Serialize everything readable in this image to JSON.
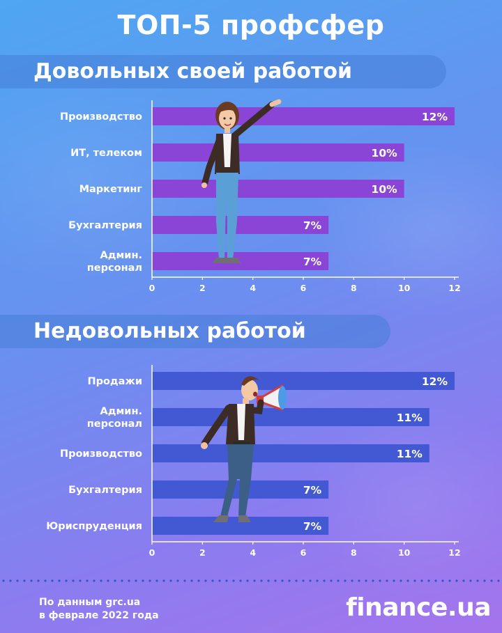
{
  "header": {
    "title": "ТОП-5 профсфер"
  },
  "colors": {
    "bar_satisfied": "#8a44d6",
    "bar_dissatisfied": "#4359d4",
    "axis": "#ffffff"
  },
  "chart_data": [
    {
      "type": "bar",
      "orientation": "horizontal",
      "title": "Довольных своей работой",
      "categories": [
        "Производство",
        "ИТ, телеком",
        "Маркетинг",
        "Бухгалтерия",
        "Админ. персонал"
      ],
      "category_lines": [
        [
          "Производство"
        ],
        [
          "ИТ, телеком"
        ],
        [
          "Маркетинг"
        ],
        [
          "Бухгалтерия"
        ],
        [
          "Админ.",
          "персонал"
        ]
      ],
      "values": [
        12,
        10,
        10,
        7,
        7
      ],
      "value_labels": [
        "12%",
        "10%",
        "10%",
        "7%",
        "7%"
      ],
      "xlim": [
        0,
        12
      ],
      "ticks": [
        0,
        2,
        4,
        6,
        8,
        10,
        12
      ],
      "tick_labels": [
        "0",
        "2",
        "4",
        "6",
        "8",
        "10",
        "12"
      ],
      "grid": false,
      "color": "#8a44d6"
    },
    {
      "type": "bar",
      "orientation": "horizontal",
      "title": "Недовольных работой",
      "categories": [
        "Продажи",
        "Админ. персонал",
        "Производство",
        "Бухгалтерия",
        "Юриспруденция"
      ],
      "category_lines": [
        [
          "Продажи"
        ],
        [
          "Админ.",
          "персонал"
        ],
        [
          "Производство"
        ],
        [
          "Бухгалтерия"
        ],
        [
          "Юриспруденция"
        ]
      ],
      "values": [
        12,
        11,
        11,
        7,
        7
      ],
      "value_labels": [
        "12%",
        "11%",
        "11%",
        "7%",
        "7%"
      ],
      "xlim": [
        0,
        12
      ],
      "ticks": [
        0,
        2,
        4,
        6,
        8,
        10,
        12
      ],
      "tick_labels": [
        "0",
        "2",
        "4",
        "6",
        "8",
        "10",
        "12"
      ],
      "grid": false,
      "color": "#4359d4"
    }
  ],
  "footer": {
    "source_line1": "По данным grc.ua",
    "source_line2": "в феврале 2022 года",
    "brand": "finance.ua"
  },
  "illustrations": {
    "figure1": "woman-pointing-figure",
    "figure2": "man-megaphone-figure"
  }
}
